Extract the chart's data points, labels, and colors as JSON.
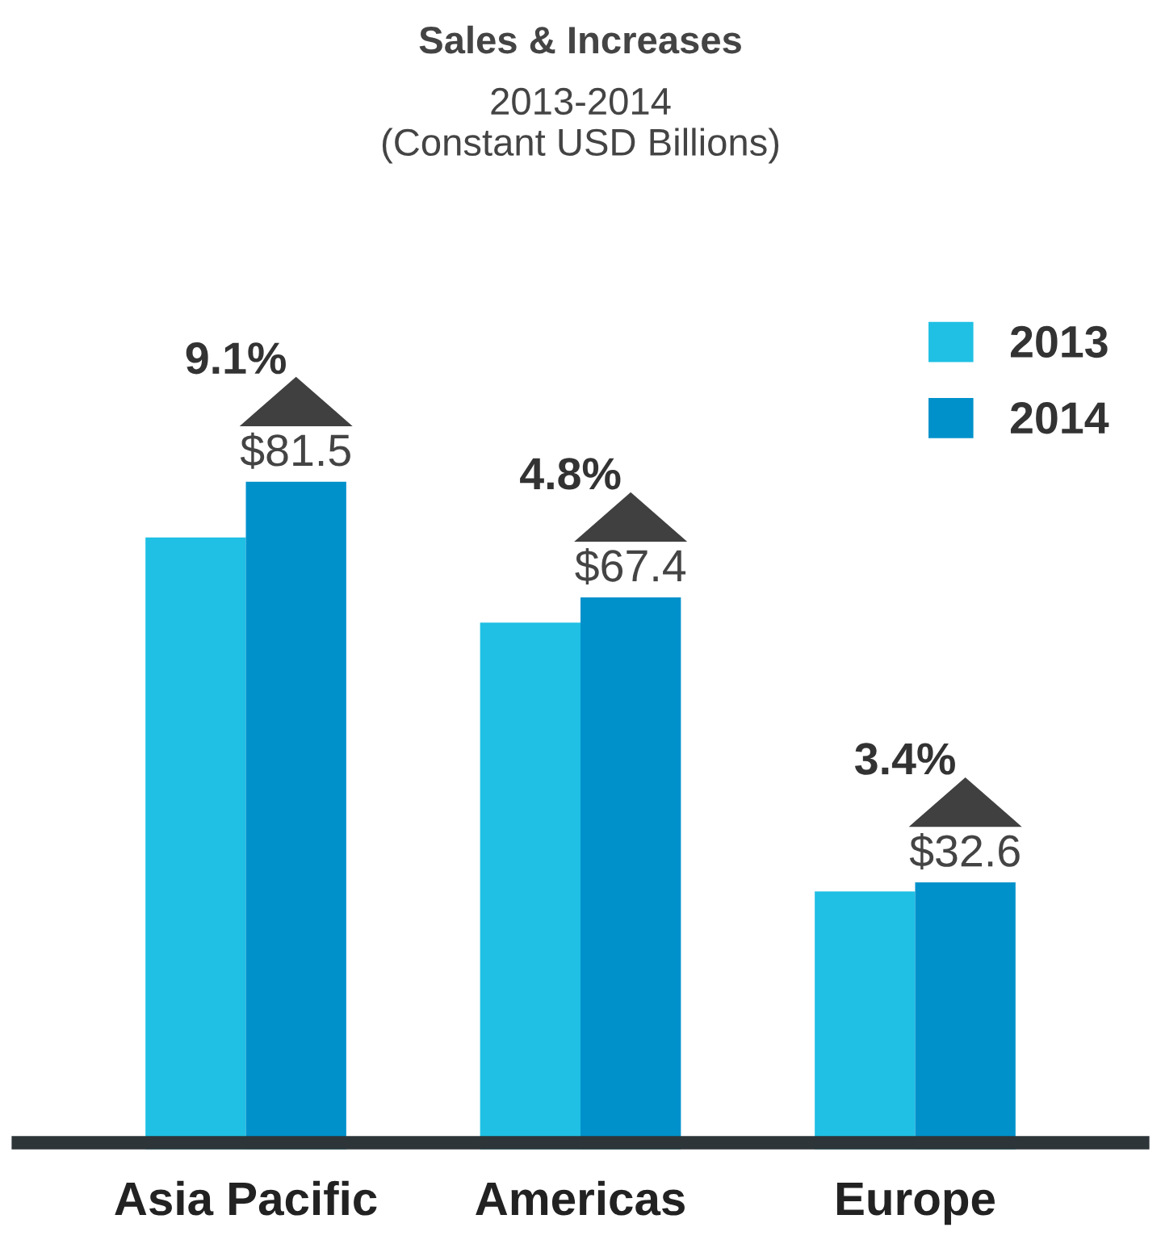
{
  "chart_data": {
    "type": "bar",
    "title": "Sales & Increases",
    "subtitle": "2013-2014\n(Constant USD Billions)",
    "categories": [
      "Asia Pacific",
      "Americas",
      "Europe"
    ],
    "series": [
      {
        "name": "2013",
        "color": "#1fc0e4",
        "values": [
          74.7,
          64.3,
          31.5
        ]
      },
      {
        "name": "2014",
        "color": "#0091cb",
        "values": [
          81.5,
          67.4,
          32.6
        ],
        "value_labels": [
          "$81.5",
          "$67.4",
          "$32.6"
        ]
      }
    ],
    "annotations": [
      {
        "text": "9.1%",
        "x": "Asia Pacific",
        "y": 81.5
      },
      {
        "text": "4.8%",
        "x": "Americas",
        "y": 67.4
      },
      {
        "text": "3.4%",
        "x": "Europe",
        "y": 32.6
      }
    ],
    "legend": "top right",
    "grid": false
  }
}
